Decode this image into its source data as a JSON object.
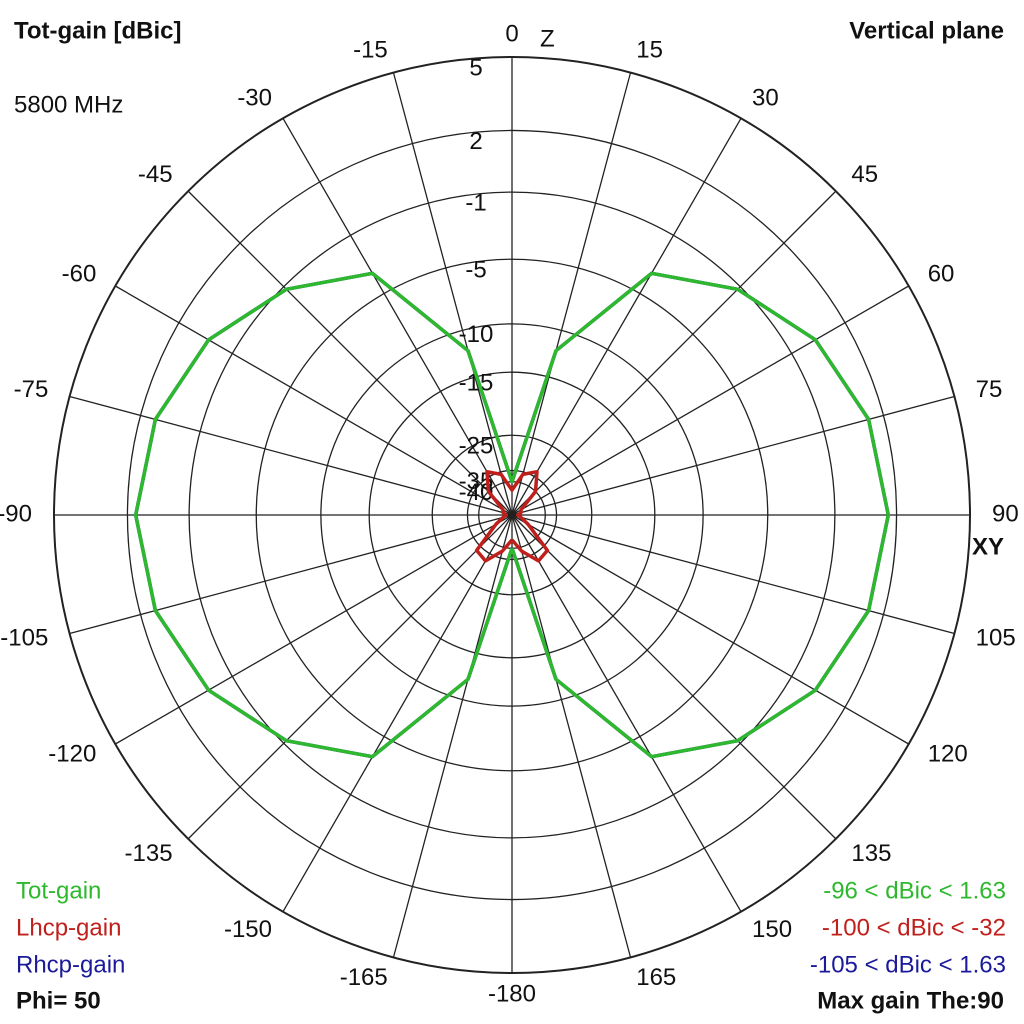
{
  "chart_data": {
    "type": "polar",
    "title": "Tot-gain [dBic]",
    "subtitle": "Vertical plane",
    "frequency": "5800 MHz",
    "phi_label": "Phi= 50",
    "max_gain_label": "Max gain The:90",
    "axis_labels": {
      "top": "Z",
      "right": "XY"
    },
    "scale": "arrl",
    "rlim": [
      -40,
      5
    ],
    "rticks": [
      5,
      2,
      -1,
      -5,
      -10,
      -15,
      -25,
      -35,
      -40
    ],
    "thetaticks": [
      0,
      15,
      30,
      45,
      60,
      75,
      90,
      105,
      120,
      135,
      150,
      165,
      -180,
      -165,
      -150,
      -135,
      -120,
      -105,
      -90,
      -75,
      -60,
      -45,
      -30,
      -15
    ],
    "theta": [
      -180,
      -165,
      -150,
      -135,
      -120,
      -105,
      -90,
      -75,
      -60,
      -45,
      -30,
      -15,
      0,
      15,
      30,
      45,
      60,
      75,
      90,
      105,
      120,
      135,
      150,
      165,
      180
    ],
    "series": [
      {
        "name": "Rhcp-gain",
        "color": "#1a1a9a",
        "range": "-105 < dBic < 1.63",
        "values": [
          -40,
          -12,
          -3.5,
          -1.2,
          0.4,
          1.3,
          1.63,
          1.3,
          0.4,
          -1.2,
          -3.5,
          -12,
          -40,
          -12,
          -3.5,
          -1.2,
          0.4,
          1.3,
          1.63,
          1.3,
          0.4,
          -1.2,
          -3.5,
          -12,
          -40
        ]
      },
      {
        "name": "Lhcp-gain",
        "color": "#c0201c",
        "range": "-100 < dBic < -32",
        "values": [
          -45,
          -38,
          -32,
          -33,
          -50,
          -62,
          -70,
          -62,
          -60,
          -40,
          -33,
          -36,
          -45,
          -36,
          -33,
          -40,
          -60,
          -62,
          -70,
          -62,
          -50,
          -33,
          -32,
          -38,
          -45
        ]
      },
      {
        "name": "Tot-gain",
        "color": "#2db82d",
        "range": "-96 < dBic < 1.63",
        "values": [
          -40,
          -12,
          -3.5,
          -1.2,
          0.4,
          1.3,
          1.63,
          1.3,
          0.4,
          -1.2,
          -3.5,
          -12,
          -40,
          -12,
          -3.5,
          -1.2,
          0.4,
          1.3,
          1.63,
          1.3,
          0.4,
          -1.2,
          -3.5,
          -12,
          -40
        ]
      }
    ]
  }
}
